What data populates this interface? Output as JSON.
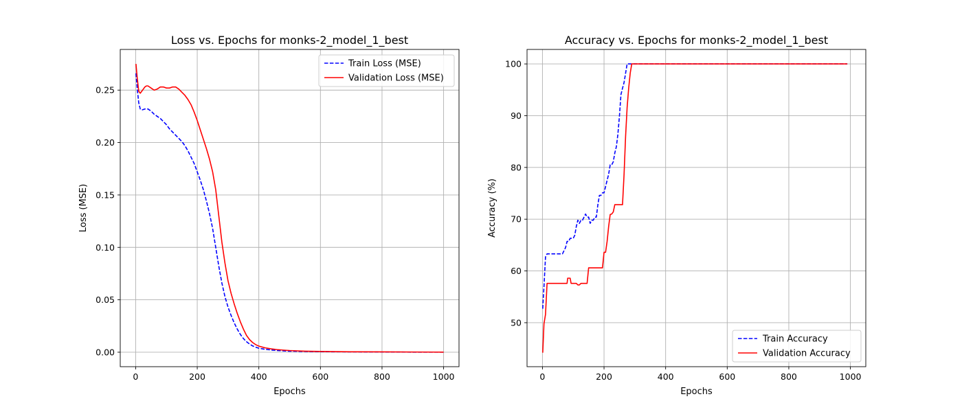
{
  "chart_data": [
    {
      "type": "line",
      "title": "Loss vs. Epochs for monks-2_model_1_best",
      "xlabel": "Epochs",
      "ylabel": "Loss (MSE)",
      "xlim": [
        -50,
        1050
      ],
      "ylim": [
        -0.0138,
        0.2888
      ],
      "xticks": [
        0,
        200,
        400,
        600,
        800,
        1000
      ],
      "yticks": [
        0.0,
        0.05,
        0.1,
        0.15,
        0.2,
        0.25
      ],
      "ytick_labels": [
        "0.00",
        "0.05",
        "0.10",
        "0.15",
        "0.20",
        "0.25"
      ],
      "grid": true,
      "legend": "upper right",
      "series": [
        {
          "name": "Train Loss (MSE)",
          "color": "#0000ff",
          "style": "dashed",
          "x": [
            1,
            5,
            10,
            15,
            20,
            30,
            40,
            50,
            60,
            70,
            80,
            90,
            100,
            110,
            120,
            130,
            140,
            150,
            160,
            170,
            180,
            190,
            200,
            210,
            220,
            230,
            240,
            250,
            260,
            270,
            280,
            290,
            300,
            310,
            320,
            330,
            340,
            350,
            360,
            370,
            380,
            390,
            400,
            420,
            440,
            460,
            480,
            500,
            550,
            600,
            700,
            800,
            900,
            1000
          ],
          "y": [
            0.266,
            0.252,
            0.238,
            0.232,
            0.231,
            0.232,
            0.232,
            0.23,
            0.227,
            0.225,
            0.223,
            0.22,
            0.217,
            0.213,
            0.21,
            0.207,
            0.204,
            0.201,
            0.197,
            0.192,
            0.186,
            0.18,
            0.172,
            0.164,
            0.155,
            0.144,
            0.132,
            0.118,
            0.1,
            0.082,
            0.066,
            0.053,
            0.043,
            0.035,
            0.028,
            0.022,
            0.017,
            0.013,
            0.01,
            0.0078,
            0.006,
            0.0048,
            0.0038,
            0.0028,
            0.0021,
            0.0016,
            0.0013,
            0.001,
            0.0007,
            0.0005,
            0.0003,
            0.0002,
            0.0001,
            0.0001
          ]
        },
        {
          "name": "Validation Loss (MSE)",
          "color": "#ff0000",
          "style": "solid",
          "x": [
            1,
            5,
            10,
            15,
            20,
            25,
            30,
            35,
            40,
            50,
            60,
            70,
            80,
            90,
            100,
            110,
            120,
            130,
            140,
            150,
            160,
            170,
            180,
            190,
            200,
            210,
            220,
            230,
            240,
            250,
            260,
            270,
            280,
            290,
            300,
            310,
            320,
            330,
            340,
            350,
            360,
            370,
            380,
            390,
            400,
            420,
            440,
            460,
            480,
            500,
            550,
            600,
            700,
            800,
            900,
            1000
          ],
          "y": [
            0.275,
            0.262,
            0.249,
            0.247,
            0.249,
            0.251,
            0.253,
            0.254,
            0.254,
            0.252,
            0.25,
            0.251,
            0.253,
            0.253,
            0.252,
            0.252,
            0.253,
            0.253,
            0.251,
            0.248,
            0.245,
            0.241,
            0.236,
            0.229,
            0.221,
            0.212,
            0.203,
            0.194,
            0.184,
            0.172,
            0.155,
            0.13,
            0.105,
            0.085,
            0.068,
            0.056,
            0.046,
            0.037,
            0.029,
            0.022,
            0.016,
            0.012,
            0.0092,
            0.0072,
            0.0058,
            0.0042,
            0.0032,
            0.0025,
            0.002,
            0.0016,
            0.001,
            0.0007,
            0.0004,
            0.0003,
            0.0002,
            0.0001
          ]
        }
      ]
    },
    {
      "type": "line",
      "title": "Accuracy vs. Epochs for monks-2_model_1_best",
      "xlabel": "Epochs",
      "ylabel": "Accuracy (%)",
      "xlim": [
        -50,
        1050
      ],
      "ylim": [
        41.5,
        102.8
      ],
      "xticks": [
        0,
        200,
        400,
        600,
        800,
        1000
      ],
      "yticks": [
        50,
        60,
        70,
        80,
        90,
        100
      ],
      "ytick_labels": [
        "50",
        "60",
        "70",
        "80",
        "90",
        "100"
      ],
      "grid": true,
      "legend": "lower right",
      "series": [
        {
          "name": "Train Accuracy",
          "color": "#0000ff",
          "style": "dashed",
          "x": [
            1,
            5,
            10,
            15,
            20,
            30,
            40,
            50,
            60,
            65,
            70,
            75,
            80,
            85,
            90,
            95,
            100,
            105,
            110,
            115,
            120,
            125,
            130,
            135,
            140,
            145,
            150,
            155,
            160,
            165,
            170,
            175,
            180,
            185,
            190,
            195,
            200,
            205,
            210,
            215,
            220,
            225,
            230,
            235,
            240,
            245,
            250,
            255,
            260,
            265,
            270,
            275,
            280,
            285,
            290,
            295,
            300,
            400,
            600,
            800,
            990
          ],
          "y": [
            52.7,
            57,
            62.7,
            63.3,
            63.3,
            63.3,
            63.3,
            63.3,
            63.3,
            63.3,
            63.9,
            64.5,
            65.7,
            65.7,
            66.3,
            66.3,
            66.3,
            66.9,
            68.6,
            69.8,
            69.2,
            69.8,
            69.8,
            70.4,
            71,
            70.4,
            70.4,
            69.2,
            69.8,
            69.8,
            70.4,
            70.4,
            72.8,
            74.6,
            74.6,
            75.1,
            75.1,
            76.3,
            77.5,
            78.7,
            80.5,
            80.5,
            81.1,
            82.8,
            84,
            86.4,
            89.9,
            94.1,
            95.3,
            96.4,
            98.2,
            100,
            100,
            100,
            100,
            100,
            100,
            100,
            100,
            100,
            100
          ]
        },
        {
          "name": "Validation Accuracy",
          "color": "#ff0000",
          "style": "solid",
          "x": [
            1,
            5,
            10,
            15,
            20,
            40,
            60,
            80,
            82,
            85,
            90,
            93,
            95,
            100,
            105,
            110,
            115,
            120,
            125,
            130,
            135,
            140,
            145,
            150,
            155,
            160,
            170,
            180,
            190,
            195,
            200,
            205,
            210,
            215,
            220,
            225,
            230,
            235,
            240,
            245,
            250,
            255,
            260,
            265,
            270,
            275,
            280,
            285,
            290,
            295,
            300,
            400,
            600,
            800,
            990
          ],
          "y": [
            44.2,
            49.8,
            51.6,
            57.6,
            57.6,
            57.6,
            57.6,
            57.6,
            58.6,
            58.6,
            58.6,
            57.6,
            57.6,
            57.6,
            57.6,
            57.6,
            57.3,
            57.3,
            57.6,
            57.6,
            57.6,
            57.6,
            57.6,
            60.6,
            60.6,
            60.6,
            60.6,
            60.6,
            60.6,
            60.6,
            63.6,
            63.6,
            65.7,
            68.6,
            70.9,
            71,
            71.4,
            72.8,
            72.8,
            72.8,
            72.8,
            72.8,
            72.8,
            78.6,
            86,
            91.6,
            95.3,
            98.2,
            100,
            100,
            100,
            100,
            100,
            100,
            100
          ]
        }
      ]
    }
  ]
}
